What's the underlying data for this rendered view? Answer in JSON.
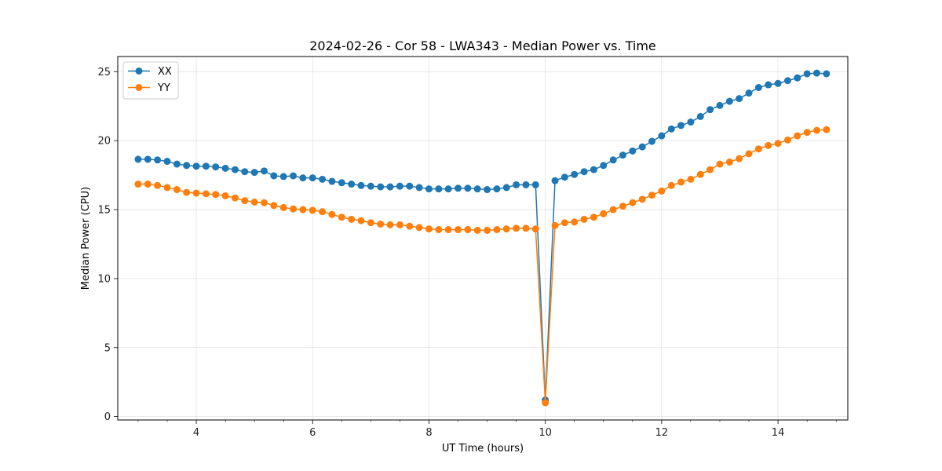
{
  "chart_data": {
    "type": "line",
    "title": "2024-02-26 - Cor 58 - LWA343 - Median Power vs. Time",
    "xlabel": "UT Time (hours)",
    "ylabel": "Median Power (CPU)",
    "xlim": [
      2.65,
      15.2
    ],
    "ylim": [
      -0.25,
      26.1
    ],
    "xticks": [
      4,
      6,
      8,
      10,
      12,
      14
    ],
    "xminor_step": 0.5,
    "yticks": [
      0,
      5,
      10,
      15,
      20,
      25
    ],
    "grid": true,
    "legend": "top-left",
    "x": [
      3.0,
      3.167,
      3.333,
      3.5,
      3.667,
      3.833,
      4.0,
      4.167,
      4.333,
      4.5,
      4.667,
      4.833,
      5.0,
      5.167,
      5.333,
      5.5,
      5.667,
      5.833,
      6.0,
      6.167,
      6.333,
      6.5,
      6.667,
      6.833,
      7.0,
      7.167,
      7.333,
      7.5,
      7.667,
      7.833,
      8.0,
      8.167,
      8.333,
      8.5,
      8.667,
      8.833,
      9.0,
      9.167,
      9.333,
      9.5,
      9.667,
      9.833,
      10.0,
      10.167,
      10.333,
      10.5,
      10.667,
      10.833,
      11.0,
      11.167,
      11.333,
      11.5,
      11.667,
      11.833,
      12.0,
      12.167,
      12.333,
      12.5,
      12.667,
      12.833,
      13.0,
      13.167,
      13.333,
      13.5,
      13.667,
      13.833,
      14.0,
      14.167,
      14.333,
      14.5,
      14.667,
      14.833
    ],
    "series": [
      {
        "name": "XX",
        "color": "#1f77b4",
        "values": [
          18.65,
          18.65,
          18.6,
          18.5,
          18.3,
          18.2,
          18.15,
          18.15,
          18.1,
          18.0,
          17.9,
          17.75,
          17.7,
          17.8,
          17.45,
          17.4,
          17.45,
          17.3,
          17.3,
          17.2,
          17.05,
          16.95,
          16.85,
          16.75,
          16.7,
          16.65,
          16.65,
          16.7,
          16.7,
          16.6,
          16.5,
          16.5,
          16.5,
          16.55,
          16.55,
          16.5,
          16.45,
          16.5,
          16.6,
          16.8,
          16.8,
          16.8,
          1.2,
          17.1,
          17.35,
          17.55,
          17.75,
          17.9,
          18.2,
          18.6,
          18.95,
          19.25,
          19.55,
          19.95,
          20.35,
          20.85,
          21.1,
          21.35,
          21.75,
          22.25,
          22.55,
          22.85,
          23.05,
          23.45,
          23.85,
          24.05,
          24.15,
          24.35,
          24.55,
          24.85,
          24.9,
          24.85
        ]
      },
      {
        "name": "YY",
        "color": "#ff7f0e",
        "values": [
          16.85,
          16.85,
          16.75,
          16.6,
          16.45,
          16.25,
          16.2,
          16.15,
          16.1,
          16.0,
          15.85,
          15.65,
          15.55,
          15.5,
          15.3,
          15.15,
          15.05,
          15.0,
          14.95,
          14.85,
          14.65,
          14.45,
          14.3,
          14.2,
          14.05,
          13.95,
          13.9,
          13.9,
          13.8,
          13.7,
          13.6,
          13.55,
          13.55,
          13.55,
          13.55,
          13.5,
          13.5,
          13.55,
          13.6,
          13.65,
          13.65,
          13.6,
          1.0,
          13.85,
          14.05,
          14.1,
          14.3,
          14.45,
          14.7,
          15.0,
          15.25,
          15.5,
          15.75,
          16.05,
          16.35,
          16.75,
          17.0,
          17.2,
          17.55,
          17.9,
          18.3,
          18.45,
          18.7,
          19.05,
          19.4,
          19.65,
          19.8,
          20.05,
          20.35,
          20.6,
          20.75,
          20.8
        ]
      }
    ]
  }
}
